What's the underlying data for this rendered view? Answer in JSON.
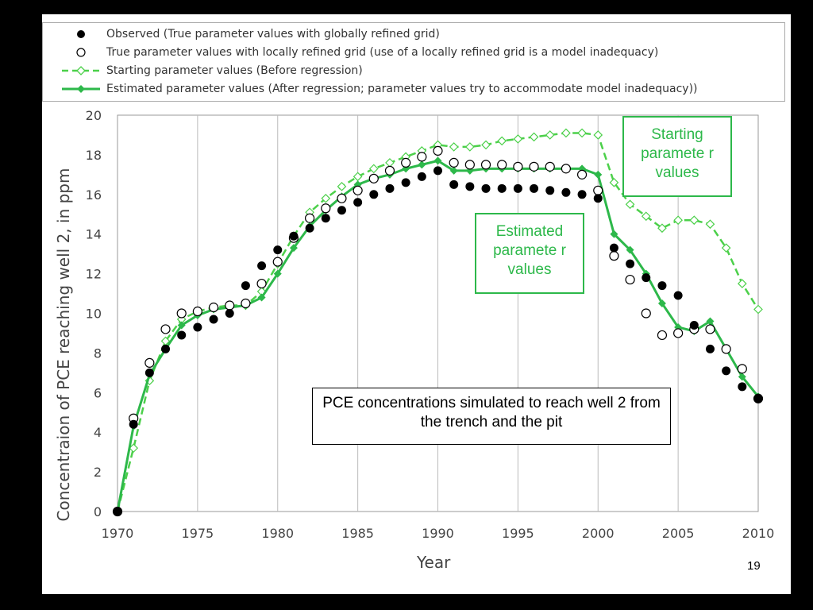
{
  "legend": {
    "items": [
      {
        "symbol": "filled-circle",
        "label": "Observed (True parameter values with globally refined grid)"
      },
      {
        "symbol": "open-circle",
        "label": "True parameter values with locally refined grid (use of a locally refined grid is a model inadequacy)"
      },
      {
        "symbol": "dashed-line-open-diamond",
        "label": "Starting parameter values (Before regression)"
      },
      {
        "symbol": "solid-line-filled-diamond",
        "label": "Estimated parameter values (After regression; parameter values try to accommodate model inadequacy))"
      }
    ]
  },
  "callouts": {
    "starting": "Starting paramete r values",
    "estimated": "Estimated paramete r values",
    "pce": "PCE concentrations simulated to reach well 2 from the trench and the pit"
  },
  "slide_number": "19",
  "colors": {
    "green": "#2db84a",
    "light_green": "#4cd04a",
    "black": "#000000"
  },
  "chart_data": {
    "type": "scatter",
    "title": "",
    "xlabel": "Year",
    "ylabel": "Concentraion of PCE reaching well 2, in ppm",
    "xlim": [
      1970,
      2010
    ],
    "ylim": [
      0,
      20
    ],
    "x_ticks": [
      1970,
      1975,
      1980,
      1985,
      1990,
      1995,
      2000,
      2005,
      2010
    ],
    "y_ticks": [
      0,
      2,
      4,
      6,
      8,
      10,
      12,
      14,
      16,
      18,
      20
    ],
    "grid": "vertical",
    "x": [
      1970,
      1971,
      1972,
      1973,
      1974,
      1975,
      1976,
      1977,
      1978,
      1979,
      1980,
      1981,
      1982,
      1983,
      1984,
      1985,
      1986,
      1987,
      1988,
      1989,
      1990,
      1991,
      1992,
      1993,
      1994,
      1995,
      1996,
      1997,
      1998,
      1999,
      2000,
      2001,
      2002,
      2003,
      2004,
      2005,
      2006,
      2007,
      2008,
      2009,
      2010
    ],
    "series": [
      {
        "name": "Observed (True parameter values with globally refined grid)",
        "style": "filled-circle",
        "values": [
          0,
          4.4,
          7.0,
          8.2,
          8.9,
          9.3,
          9.7,
          10.0,
          11.4,
          12.4,
          13.2,
          13.9,
          14.3,
          14.8,
          15.2,
          15.6,
          16.0,
          16.3,
          16.6,
          16.9,
          17.2,
          16.5,
          16.4,
          16.3,
          16.3,
          16.3,
          16.3,
          16.2,
          16.1,
          16.0,
          15.8,
          13.3,
          12.5,
          11.8,
          11.4,
          10.9,
          9.4,
          8.2,
          7.1,
          6.3,
          5.7
        ]
      },
      {
        "name": "True parameter values with locally refined grid (use of a locally refined grid is a model inadequacy)",
        "style": "open-circle",
        "values": [
          0,
          4.7,
          7.5,
          9.2,
          10.0,
          10.1,
          10.3,
          10.4,
          10.5,
          11.5,
          12.6,
          13.8,
          14.8,
          15.3,
          15.8,
          16.2,
          16.8,
          17.2,
          17.6,
          17.9,
          18.2,
          17.6,
          17.5,
          17.5,
          17.5,
          17.4,
          17.4,
          17.4,
          17.3,
          17.0,
          16.2,
          12.9,
          11.7,
          10.0,
          8.9,
          9.0,
          9.2,
          9.2,
          8.2,
          7.2,
          5.7
        ]
      },
      {
        "name": "Starting parameter values (Before regression)",
        "style": "dashed-line-open-diamond",
        "values": [
          0,
          3.2,
          6.6,
          8.6,
          9.7,
          10.1,
          10.3,
          10.4,
          10.4,
          11.1,
          12.5,
          13.9,
          15.1,
          15.8,
          16.4,
          16.9,
          17.3,
          17.6,
          17.9,
          18.2,
          18.5,
          18.4,
          18.4,
          18.5,
          18.7,
          18.8,
          18.9,
          19.0,
          19.1,
          19.1,
          19.0,
          16.6,
          15.5,
          14.9,
          14.3,
          14.7,
          14.7,
          14.5,
          13.3,
          11.5,
          10.2
        ]
      },
      {
        "name": "Estimated parameter values (After regression; parameter values try to accommodate model inadequacy))",
        "style": "solid-line-filled-diamond",
        "values": [
          0,
          4.3,
          6.9,
          8.2,
          9.4,
          9.9,
          10.2,
          10.3,
          10.4,
          10.8,
          12.0,
          13.3,
          14.4,
          15.2,
          15.9,
          16.5,
          16.8,
          17.0,
          17.3,
          17.5,
          17.7,
          17.2,
          17.2,
          17.3,
          17.3,
          17.3,
          17.3,
          17.3,
          17.3,
          17.3,
          17.0,
          14.0,
          13.2,
          12.0,
          10.5,
          9.3,
          9.1,
          9.6,
          8.2,
          6.8,
          5.8
        ]
      }
    ]
  }
}
